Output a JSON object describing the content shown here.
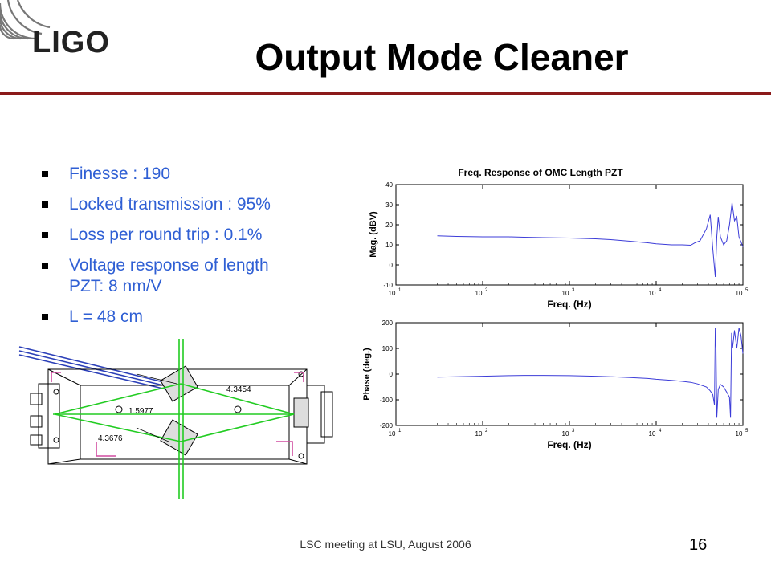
{
  "logo": {
    "text": "LIGO"
  },
  "slide": {
    "title": "Output Mode Cleaner"
  },
  "bullets": [
    {
      "line1": "Finesse : 190",
      "line2": ""
    },
    {
      "line1": "Locked transmission : 95%",
      "line2": ""
    },
    {
      "line1": "Loss per round trip : 0.1%",
      "line2": ""
    },
    {
      "line1": "Voltage response of length",
      "line2": "PZT:  8 nm/V"
    },
    {
      "line1": "L = 48 cm",
      "line2": ""
    }
  ],
  "diagram": {
    "labels": {
      "a": "4.3454",
      "b": "1.5977",
      "c": "4.3676"
    }
  },
  "chart_data": [
    {
      "type": "line",
      "title": "Freq. Response of OMC Length PZT",
      "xlabel": "Freq. (Hz)",
      "ylabel": "Mag. (dBV)",
      "xscale": "log",
      "xlim": [
        10,
        100000
      ],
      "ylim": [
        -10,
        40
      ],
      "yticks": [
        -10,
        0,
        10,
        20,
        30,
        40
      ],
      "xtick_exponents": [
        "1",
        "2",
        "3",
        "4",
        "5"
      ],
      "color": "#3c3cd8",
      "x": [
        30,
        50,
        100,
        200,
        300,
        500,
        1000,
        2000,
        3000,
        5000,
        8000,
        10000,
        15000,
        20000,
        25000,
        28000,
        32000,
        38000,
        42000,
        45000,
        48000,
        50000,
        52000,
        55000,
        60000,
        65000,
        70000,
        75000,
        80000,
        85000,
        90000,
        100000
      ],
      "y": [
        14.5,
        14.2,
        14.0,
        14.0,
        13.8,
        13.6,
        13.4,
        13.0,
        12.6,
        11.8,
        11.0,
        10.5,
        10.0,
        10.0,
        9.8,
        11.0,
        12.0,
        18.0,
        25.0,
        8.0,
        -6.0,
        14.0,
        24.0,
        14.0,
        10.0,
        12.0,
        20.0,
        31.0,
        22.0,
        24.0,
        14.0,
        9.0
      ]
    },
    {
      "type": "line",
      "title": "",
      "xlabel": "Freq. (Hz)",
      "ylabel": "Phase (deg.)",
      "xscale": "log",
      "xlim": [
        10,
        100000
      ],
      "ylim": [
        -200,
        200
      ],
      "yticks": [
        -200,
        -100,
        0,
        100,
        200
      ],
      "xtick_exponents": [
        "1",
        "2",
        "3",
        "4",
        "5"
      ],
      "color": "#3c3cd8",
      "x": [
        30,
        50,
        100,
        200,
        300,
        500,
        1000,
        2000,
        3000,
        5000,
        8000,
        10000,
        15000,
        20000,
        25000,
        30000,
        38000,
        42000,
        45000,
        47000,
        48000,
        49000,
        50000,
        52000,
        55000,
        60000,
        65000,
        70000,
        72000,
        74000,
        76000,
        80000,
        85000,
        90000,
        95000,
        100000
      ],
      "y": [
        -12,
        -10,
        -8,
        -6,
        -5,
        -5,
        -6,
        -8,
        -10,
        -13,
        -17,
        -20,
        -24,
        -28,
        -32,
        -38,
        -50,
        -65,
        -80,
        -120,
        180,
        100,
        -170,
        -60,
        -40,
        -50,
        -70,
        -90,
        -170,
        160,
        100,
        170,
        100,
        180,
        150,
        80
      ]
    }
  ],
  "footer": {
    "text": "LSC meeting at LSU, August 2006",
    "page": "16"
  }
}
